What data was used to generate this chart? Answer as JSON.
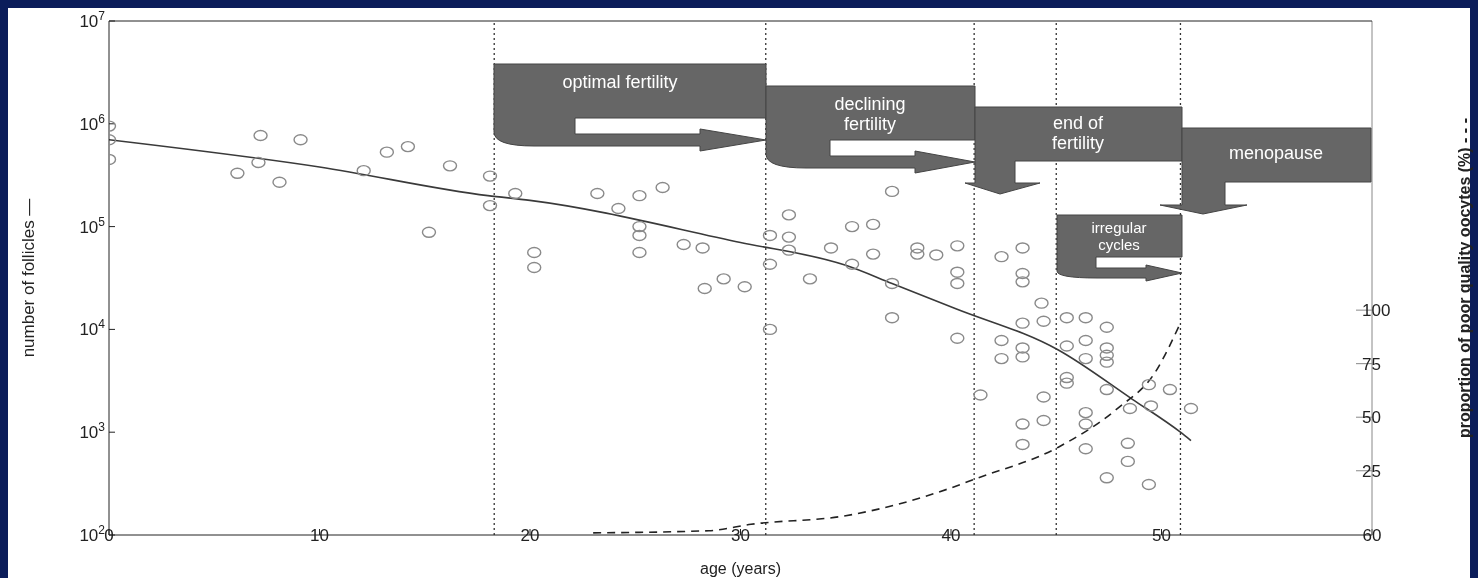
{
  "chart_data": {
    "type": "scatter",
    "xlabel": "age (years)",
    "ylabel": "number of follicles —",
    "y2label": "proportion of poor quality oocytes (%) - - -",
    "xlim": [
      0,
      60
    ],
    "xticks": [
      0,
      10,
      20,
      30,
      40,
      50,
      60
    ],
    "log": "y",
    "ylim": [
      100,
      10000000
    ],
    "yticks": [
      {
        "value": 100,
        "label": "10$^{2}$"
      },
      {
        "value": 1000,
        "label": "10$^{3}$"
      },
      {
        "value": 10000,
        "label": "10$^{4}$"
      },
      {
        "value": 100000,
        "label": "10$^{5}$"
      },
      {
        "value": 1000000,
        "label": "10$^{6}$"
      },
      {
        "value": 10000000,
        "label": "10$^{7}$"
      }
    ],
    "y2lim": [
      -5,
      235
    ],
    "y2ticks": [
      25,
      50,
      75,
      100
    ],
    "annotations": [
      "optimal fertility",
      "declining fertility",
      "end of fertility",
      "menopause",
      "irregular cycles"
    ],
    "ref_lines": [
      {
        "axis": "x",
        "value": 18.3,
        "color": "#333333",
        "line_style": "dotted"
      },
      {
        "axis": "x",
        "value": 31.2,
        "color": "#333333",
        "line_style": "dotted"
      },
      {
        "axis": "x",
        "value": 41.1,
        "color": "#333333",
        "line_style": "dotted"
      },
      {
        "axis": "x",
        "value": 45.0,
        "color": "#333333",
        "line_style": "dotted"
      },
      {
        "axis": "x",
        "value": 50.9,
        "color": "#333333",
        "line_style": "dotted"
      }
    ],
    "series": [
      {
        "color": "#8a8a8a",
        "marker": "circle",
        "x": [
          0,
          0,
          0,
          6.1,
          7.2,
          7.1,
          8.1,
          9.1,
          12.1,
          13.2,
          14.2,
          15.2,
          16.2,
          18.1,
          18.1,
          19.3,
          20.2,
          20.2,
          23.2,
          24.2,
          25.2,
          26.3,
          25.2,
          25.2,
          25.2,
          27.3,
          28.2,
          28.3,
          29.2,
          30.2,
          31.4,
          31.4,
          31.4,
          32.3,
          32.3,
          32.3,
          33.3,
          34.3,
          35.3,
          36.3,
          35.3,
          36.3,
          37.2,
          37.2,
          37.2,
          38.4,
          38.4,
          39.3,
          40.3,
          40.3,
          40.3,
          40.3,
          41.4,
          42.4,
          43.4,
          43.4,
          43.4,
          44.3,
          43.4,
          42.4,
          43.4,
          42.4,
          43.4,
          44.4,
          44.4,
          43.4,
          44.4,
          43.4,
          45.5,
          46.4,
          47.4,
          46.4,
          45.5,
          47.4,
          46.4,
          47.4,
          47.4,
          45.5,
          45.5,
          47.4,
          49.4,
          50.4,
          46.4,
          46.4,
          46.4,
          48.5,
          49.5,
          48.4,
          48.4,
          47.4,
          49.4,
          51.4
        ],
        "values": [
          950000,
          700000,
          450000,
          330000,
          770000,
          420000,
          270000,
          700000,
          350000,
          530000,
          600000,
          88000,
          390000,
          310000,
          160000,
          210000,
          56000,
          40000,
          210000,
          150000,
          200000,
          240000,
          100000,
          82000,
          56000,
          67000,
          62000,
          25000,
          31000,
          26000,
          82000,
          43000,
          10000,
          130000,
          79000,
          59000,
          31000,
          62000,
          100000,
          105000,
          43000,
          54000,
          220000,
          28000,
          13000,
          62000,
          54000,
          53000,
          65000,
          36000,
          28000,
          8200,
          2300,
          51000,
          62000,
          35000,
          29000,
          18000,
          11500,
          7800,
          6600,
          5200,
          5400,
          12000,
          2200,
          1200,
          1300,
          760,
          13000,
          13000,
          10500,
          7800,
          6900,
          6600,
          5200,
          5600,
          4800,
          3400,
          3000,
          2600,
          2900,
          2600,
          1550,
          1200,
          690,
          1700,
          1800,
          780,
          520,
          360,
          310,
          1700
        ]
      },
      {
        "type": "line",
        "color": "#3a3a3a",
        "line_style": "solid",
        "marker": "none",
        "x": [
          0,
          10,
          18,
          20,
          30,
          35,
          37.2,
          40.2,
          45.1,
          48.6,
          50.9,
          51.4
        ],
        "values": [
          700000,
          380000,
          200000,
          180000,
          70000,
          42000,
          28000,
          16000,
          6300,
          2100,
          1000,
          830
        ]
      },
      {
        "type": "line",
        "axis": "y2",
        "color": "#222222",
        "line_style": "dashed",
        "marker": "none",
        "x": [
          23,
          28.5,
          30.5,
          35,
          40,
          41.1,
          45.1,
          47.9,
          49.7,
          50.9
        ],
        "values": [
          -4,
          -3,
          0,
          4,
          17,
          21,
          36,
          54,
          71,
          94
        ]
      }
    ]
  }
}
